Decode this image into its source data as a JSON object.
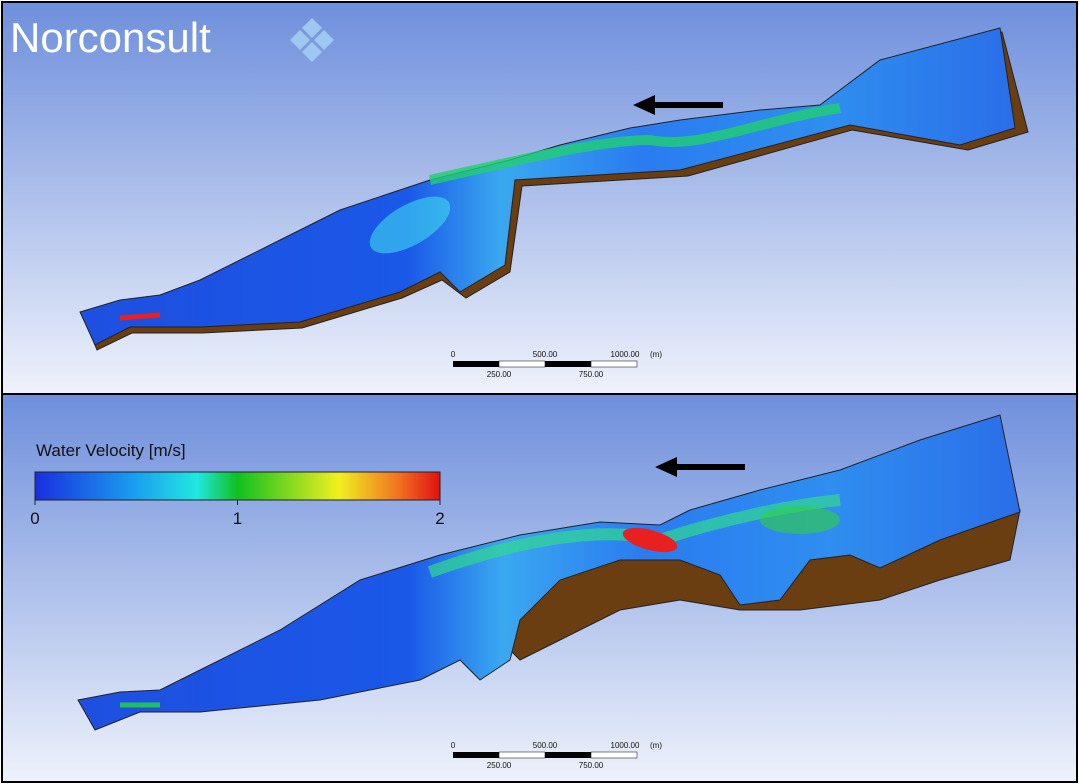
{
  "header": {
    "logo": "Norconsult"
  },
  "legend": {
    "title": "Water Velocity [m/s]",
    "range": [
      0,
      2
    ],
    "ticks": [
      0,
      1,
      2
    ]
  },
  "panels": [
    {
      "scale_bar": {
        "top_labels": [
          "0",
          "500.00",
          "1000.00"
        ],
        "unit": "(m)",
        "bottom_labels": [
          "250.00",
          "750.00"
        ]
      }
    },
    {
      "scale_bar": {
        "top_labels": [
          "0",
          "500.00",
          "1000.00"
        ],
        "unit": "(m)",
        "bottom_labels": [
          "250.00",
          "750.00"
        ]
      }
    }
  ]
}
